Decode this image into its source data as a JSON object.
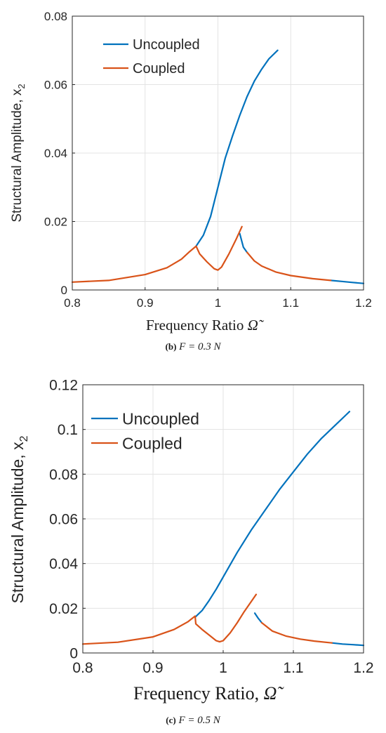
{
  "chart_data": [
    {
      "type": "line",
      "caption_label": "(b)",
      "caption_text": "F  =  0.3 N",
      "xlabel": "Frequency Ratio",
      "ylabel": "Structural Amplitude, x",
      "ylabel_sub": "2",
      "omega_symbol": "Ω̃",
      "xlim": [
        0.8,
        1.2
      ],
      "ylim": [
        0,
        0.08
      ],
      "xticks": [
        "0.8",
        "0.9",
        "1",
        "1.1",
        "1.2"
      ],
      "yticks": [
        "0",
        "0.02",
        "0.04",
        "0.06",
        "0.08"
      ],
      "grid": true,
      "legend_position": "top-left",
      "series": [
        {
          "name": "Uncoupled",
          "color": "#0072BD",
          "segments": [
            [
              [
                0.97,
                0.0128
              ],
              [
                0.98,
                0.016
              ],
              [
                0.99,
                0.0215
              ],
              [
                1.0,
                0.03
              ],
              [
                1.01,
                0.0385
              ],
              [
                1.02,
                0.045
              ],
              [
                1.03,
                0.051
              ],
              [
                1.04,
                0.0565
              ],
              [
                1.05,
                0.061
              ],
              [
                1.06,
                0.0645
              ],
              [
                1.07,
                0.0675
              ],
              [
                1.082,
                0.07
              ]
            ],
            [
              [
                1.03,
                0.0165
              ],
              [
                1.035,
                0.0125
              ],
              [
                1.04,
                0.011
              ]
            ],
            [
              [
                1.155,
                0.0028
              ],
              [
                1.17,
                0.0025
              ],
              [
                1.185,
                0.0022
              ],
              [
                1.2,
                0.0019
              ]
            ]
          ]
        },
        {
          "name": "Coupled",
          "color": "#D95319",
          "segments": [
            [
              [
                0.8,
                0.0023
              ],
              [
                0.85,
                0.0028
              ],
              [
                0.9,
                0.0045
              ],
              [
                0.93,
                0.0065
              ],
              [
                0.95,
                0.009
              ],
              [
                0.96,
                0.011
              ],
              [
                0.97,
                0.0128
              ],
              [
                0.975,
                0.0105
              ],
              [
                0.985,
                0.0082
              ],
              [
                0.995,
                0.0062
              ],
              [
                1.0,
                0.0058
              ],
              [
                1.005,
                0.0067
              ],
              [
                1.015,
                0.0105
              ],
              [
                1.025,
                0.0148
              ],
              [
                1.033,
                0.0185
              ]
            ],
            [
              [
                1.04,
                0.011
              ],
              [
                1.05,
                0.0085
              ],
              [
                1.06,
                0.007
              ],
              [
                1.08,
                0.0052
              ],
              [
                1.1,
                0.0042
              ],
              [
                1.13,
                0.0033
              ],
              [
                1.155,
                0.0028
              ]
            ]
          ]
        }
      ]
    },
    {
      "type": "line",
      "caption_label": "(c)",
      "caption_text": "F = 0.5 N",
      "xlabel": "Frequency Ratio,",
      "ylabel": "Structural Amplitude, x",
      "ylabel_sub": "2",
      "omega_symbol": "Ω̃",
      "xlim": [
        0.8,
        1.2
      ],
      "ylim": [
        0,
        0.12
      ],
      "xticks": [
        "0.8",
        "0.9",
        "1",
        "1.1",
        "1.2"
      ],
      "yticks": [
        "0",
        "0.02",
        "0.04",
        "0.06",
        "0.08",
        "0.1",
        "0.12"
      ],
      "grid": true,
      "legend_position": "top-left",
      "series": [
        {
          "name": "Uncoupled",
          "color": "#0072BD",
          "segments": [
            [
              [
                0.96,
                0.016
              ],
              [
                0.97,
                0.019
              ],
              [
                0.98,
                0.0235
              ],
              [
                0.99,
                0.0285
              ],
              [
                1.0,
                0.034
              ],
              [
                1.01,
                0.0395
              ],
              [
                1.02,
                0.045
              ],
              [
                1.04,
                0.055
              ],
              [
                1.06,
                0.064
              ],
              [
                1.08,
                0.073
              ],
              [
                1.1,
                0.081
              ],
              [
                1.12,
                0.089
              ],
              [
                1.14,
                0.096
              ],
              [
                1.16,
                0.102
              ],
              [
                1.175,
                0.1065
              ],
              [
                1.18,
                0.108
              ]
            ],
            [
              [
                1.045,
                0.0178
              ],
              [
                1.05,
                0.0155
              ],
              [
                1.055,
                0.0135
              ]
            ],
            [
              [
                1.155,
                0.0045
              ],
              [
                1.17,
                0.004
              ],
              [
                1.185,
                0.0037
              ],
              [
                1.2,
                0.0034
              ]
            ]
          ]
        },
        {
          "name": "Coupled",
          "color": "#D95319",
          "segments": [
            [
              [
                0.8,
                0.004
              ],
              [
                0.85,
                0.0048
              ],
              [
                0.9,
                0.0072
              ],
              [
                0.93,
                0.0105
              ],
              [
                0.95,
                0.014
              ],
              [
                0.96,
                0.0165
              ],
              [
                0.961,
                0.013
              ],
              [
                0.97,
                0.0105
              ],
              [
                0.98,
                0.008
              ],
              [
                0.99,
                0.0055
              ],
              [
                0.995,
                0.005
              ],
              [
                1.0,
                0.0055
              ],
              [
                1.01,
                0.009
              ],
              [
                1.02,
                0.0135
              ],
              [
                1.03,
                0.0185
              ],
              [
                1.04,
                0.023
              ],
              [
                1.047,
                0.0262
              ]
            ],
            [
              [
                1.055,
                0.0135
              ],
              [
                1.07,
                0.0098
              ],
              [
                1.09,
                0.0075
              ],
              [
                1.11,
                0.0062
              ],
              [
                1.13,
                0.0053
              ],
              [
                1.155,
                0.0045
              ]
            ]
          ]
        }
      ]
    }
  ]
}
